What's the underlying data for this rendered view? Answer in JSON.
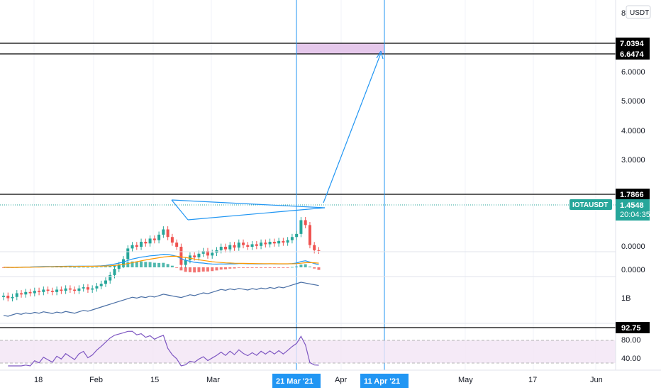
{
  "colors": {
    "up": "#26a69a",
    "down": "#ef5350",
    "drawing": "#2196f3",
    "target_box": "#e1bee7",
    "rsi": "#7e57c2",
    "obv": "#4a6fa5",
    "macd": "#2962ff",
    "signal": "#ff6d00",
    "label_bg": "#26a69a",
    "hline": "#000000"
  },
  "currency_button": "USDT",
  "symbol_label": "IOTAUSDT",
  "countdown": "20:04:35",
  "price_axis": {
    "top_partial_label": "8",
    "labels": [
      "6.0000",
      "5.0000",
      "4.0000",
      "3.0000"
    ],
    "level_boxes": [
      "7.0394",
      "6.6474",
      "1.7866"
    ],
    "last_price": "1.4548"
  },
  "macd_axis_labels": [
    "0.0000",
    "0.0000"
  ],
  "obv_axis_label": "1B",
  "rsi_axis": {
    "labels": [
      "80.00",
      "40.00"
    ],
    "level_box": "92.75"
  },
  "time_axis": {
    "labels": [
      "18",
      "Feb",
      "15",
      "Mar",
      "Apr",
      "May",
      "17",
      "Jun"
    ],
    "markers": [
      "21 Mar '21",
      "11 Apr '21"
    ]
  },
  "chart_data": {
    "type": "candlestick",
    "symbol": "IOTAUSDT",
    "currency": "USDT",
    "last_price": 1.4548,
    "x_range": [
      "2021-01-11",
      "2021-06-05"
    ],
    "price_scale": "log",
    "y_range": [
      0.8,
      8.2
    ],
    "horizontal_levels": [
      7.0394,
      6.6474,
      1.7866
    ],
    "vertical_markers": [
      "2021-03-21",
      "2021-04-11"
    ],
    "target_zone": {
      "x": [
        "2021-03-21",
        "2021-04-11"
      ],
      "y": [
        6.6474,
        7.0394
      ]
    },
    "projection_arrow": {
      "from": [
        "2021-03-23",
        1.46
      ],
      "to": [
        "2021-04-10",
        6.7
      ]
    },
    "triangle": {
      "apex": [
        "2021-03-23",
        1.44
      ],
      "upper_start": [
        "2021-02-19",
        1.7
      ],
      "lower_start": [
        "2021-02-21",
        1.22
      ]
    },
    "daily_close": [
      1.02,
      1.0,
      1.01,
      1.04,
      1.03,
      1.05,
      1.04,
      1.06,
      1.05,
      1.07,
      1.06,
      1.05,
      1.07,
      1.06,
      1.08,
      1.07,
      1.06,
      1.08,
      1.09,
      1.07,
      1.08,
      1.1,
      1.12,
      1.15,
      1.2,
      1.26,
      1.3,
      1.36,
      1.48,
      1.52,
      1.5,
      1.56,
      1.54,
      1.6,
      1.58,
      1.65,
      1.72,
      1.62,
      1.55,
      1.5,
      1.3,
      1.35,
      1.4,
      1.38,
      1.42,
      1.45,
      1.4,
      1.43,
      1.46,
      1.5,
      1.47,
      1.52,
      1.49,
      1.55,
      1.52,
      1.5,
      1.53,
      1.51,
      1.55,
      1.53,
      1.56,
      1.54,
      1.57,
      1.55,
      1.58,
      1.62,
      1.66,
      1.85,
      1.78,
      1.52,
      1.46,
      1.4548
    ],
    "indicators": {
      "macd_zero": 0,
      "rsi_levels": [
        80,
        40
      ],
      "rsi_level_marker": 92.75,
      "obv_tick": "1B"
    }
  }
}
